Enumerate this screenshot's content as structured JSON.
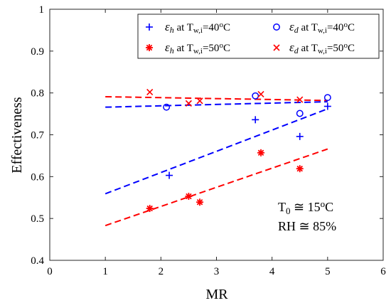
{
  "chart_data": {
    "type": "scatter",
    "xlabel": "MR",
    "ylabel": "Effectiveness",
    "xlim": [
      0,
      6
    ],
    "ylim": [
      0.4,
      1
    ],
    "xticks": [
      0,
      1,
      2,
      3,
      4,
      5,
      6
    ],
    "yticks": [
      0.4,
      0.5,
      0.6,
      0.7,
      0.8,
      0.9,
      1
    ],
    "xtick_labels": [
      "0",
      "1",
      "2",
      "3",
      "4",
      "5",
      "6"
    ],
    "ytick_labels": [
      "0.4",
      "0.5",
      "0.6",
      "0.7",
      "0.8",
      "0.9",
      "1"
    ],
    "grid": false,
    "legend_position": "top-right",
    "series": [
      {
        "legend": {
          "sym": "ε",
          "sub": "h",
          "mid": " at T",
          "sub2": "w,i",
          "val": "=40",
          "sup": "o",
          "unit": "C"
        },
        "marker": "plus",
        "color": "#0000ff",
        "x": [
          2.15,
          3.7,
          4.5,
          5.0
        ],
        "y": [
          0.603,
          0.736,
          0.696,
          0.768
        ],
        "fit": {
          "x": [
            1,
            5
          ],
          "y": [
            0.559,
            0.762
          ]
        }
      },
      {
        "legend": {
          "sym": "ε",
          "sub": "h",
          "mid": " at T",
          "sub2": "w,i",
          "val": "=50",
          "sup": "o",
          "unit": "C"
        },
        "marker": "asterisk",
        "color": "#ff0000",
        "x": [
          1.8,
          2.5,
          2.7,
          3.8,
          4.5
        ],
        "y": [
          0.524,
          0.553,
          0.539,
          0.657,
          0.619
        ],
        "fit": {
          "x": [
            1,
            5
          ],
          "y": [
            0.483,
            0.666
          ]
        }
      },
      {
        "legend": {
          "sym": "ε",
          "sub": "d",
          "mid": " at T",
          "sub2": "w,i",
          "val": "=40",
          "sup": "o",
          "unit": "C"
        },
        "marker": "circle",
        "color": "#0000ff",
        "x": [
          2.1,
          3.7,
          4.5,
          5.0
        ],
        "y": [
          0.766,
          0.793,
          0.751,
          0.789
        ],
        "fit": {
          "x": [
            1,
            5
          ],
          "y": [
            0.766,
            0.779
          ]
        }
      },
      {
        "legend": {
          "sym": "ε",
          "sub": "d",
          "mid": " at T",
          "sub2": "w,i",
          "val": "=50",
          "sup": "o",
          "unit": "C"
        },
        "marker": "x",
        "color": "#ff0000",
        "x": [
          1.8,
          2.5,
          2.7,
          3.8,
          4.5
        ],
        "y": [
          0.802,
          0.775,
          0.781,
          0.797,
          0.784
        ],
        "fit": {
          "x": [
            1,
            5
          ],
          "y": [
            0.791,
            0.782
          ]
        }
      }
    ],
    "annotations": [
      {
        "prefix": "T",
        "sub": "0",
        "mid": " ≅ 15",
        "sup": "o",
        "suffix": "C"
      },
      {
        "prefix": "RH ≅ 85%",
        "sub": "",
        "mid": "",
        "sup": "",
        "suffix": ""
      }
    ]
  }
}
